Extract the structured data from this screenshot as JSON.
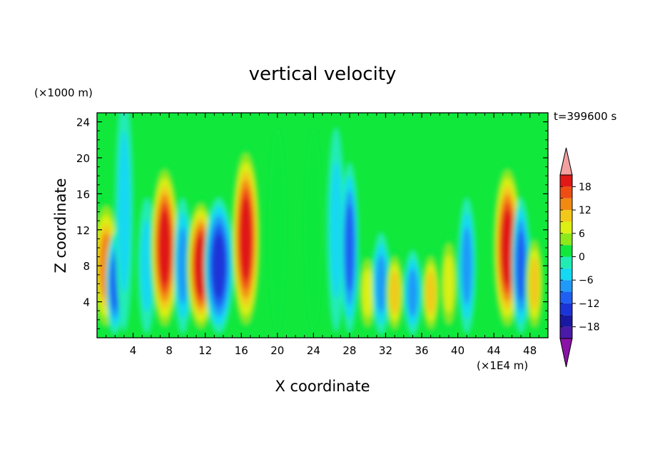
{
  "chart_data": {
    "type": "heatmap",
    "title": "vertical velocity",
    "xlabel": "X coordinate",
    "ylabel": "Z coordinate",
    "x_unit": "(×1E4 m)",
    "y_unit": "(×1000 m)",
    "time_label": "t=399600 s",
    "xlim": [
      0,
      50
    ],
    "ylim": [
      0,
      25
    ],
    "x_ticks": [
      4,
      8,
      12,
      16,
      20,
      24,
      28,
      32,
      36,
      40,
      44,
      48
    ],
    "y_ticks": [
      4,
      8,
      12,
      16,
      20,
      24
    ],
    "colorbar": {
      "range": [
        -21,
        21
      ],
      "step": 3,
      "tick_labels": [
        18,
        12,
        6,
        0,
        -6,
        -12,
        -18
      ],
      "extend": "both",
      "levels": [
        {
          "lo": -21,
          "hi": -18,
          "color": "#4a1aa8"
        },
        {
          "lo": -18,
          "hi": -15,
          "color": "#1818a0"
        },
        {
          "lo": -15,
          "hi": -12,
          "color": "#1a34d8"
        },
        {
          "lo": -12,
          "hi": -9,
          "color": "#1f5ff2"
        },
        {
          "lo": -9,
          "hi": -6,
          "color": "#1f9af8"
        },
        {
          "lo": -6,
          "hi": -3,
          "color": "#15d8f2"
        },
        {
          "lo": -3,
          "hi": 0,
          "color": "#20ecb4"
        },
        {
          "lo": 0,
          "hi": 3,
          "color": "#11e83c"
        },
        {
          "lo": 3,
          "hi": 6,
          "color": "#8ee81a"
        },
        {
          "lo": 6,
          "hi": 9,
          "color": "#dcf014"
        },
        {
          "lo": 9,
          "hi": 12,
          "color": "#f2c81a"
        },
        {
          "lo": 12,
          "hi": 15,
          "color": "#f28a12"
        },
        {
          "lo": 15,
          "hi": 18,
          "color": "#ee4e14"
        },
        {
          "lo": 18,
          "hi": 21,
          "color": "#e01818"
        }
      ],
      "under_color": "#8b12a6",
      "over_color": "#f4a0a0"
    },
    "background_value": 1,
    "cells": [
      {
        "x": 1.0,
        "z": 8,
        "value": 14
      },
      {
        "x": 2.0,
        "z": 6,
        "value": -10
      },
      {
        "x": 3.0,
        "z": 14,
        "value": -4
      },
      {
        "x": 5.5,
        "z": 8,
        "value": -6
      },
      {
        "x": 7.5,
        "z": 10,
        "value": 19
      },
      {
        "x": 9.5,
        "z": 8,
        "value": -8
      },
      {
        "x": 11.5,
        "z": 8,
        "value": 19
      },
      {
        "x": 13.5,
        "z": 8,
        "value": -14
      },
      {
        "x": 16.5,
        "z": 11,
        "value": 20
      },
      {
        "x": 20.0,
        "z": 12,
        "value": 3
      },
      {
        "x": 24.0,
        "z": 12,
        "value": 2
      },
      {
        "x": 26.5,
        "z": 12,
        "value": -5
      },
      {
        "x": 28.0,
        "z": 10,
        "value": -12
      },
      {
        "x": 30.0,
        "z": 5,
        "value": 8
      },
      {
        "x": 31.5,
        "z": 6,
        "value": -8
      },
      {
        "x": 33.0,
        "z": 5,
        "value": 12
      },
      {
        "x": 35.0,
        "z": 5,
        "value": -9
      },
      {
        "x": 37.0,
        "z": 5,
        "value": 10
      },
      {
        "x": 39.0,
        "z": 6,
        "value": 9
      },
      {
        "x": 41.0,
        "z": 8,
        "value": -8
      },
      {
        "x": 45.5,
        "z": 10,
        "value": 19
      },
      {
        "x": 47.0,
        "z": 8,
        "value": -12
      },
      {
        "x": 48.5,
        "z": 6,
        "value": 12
      }
    ]
  }
}
